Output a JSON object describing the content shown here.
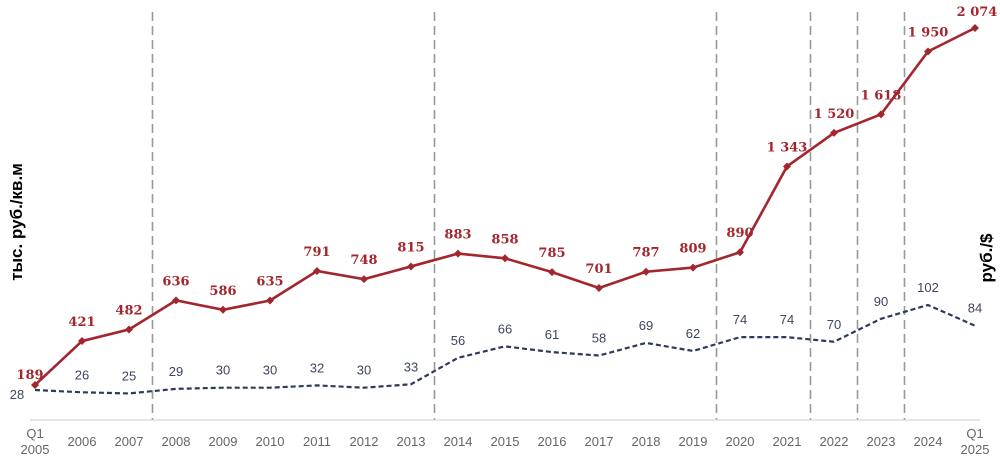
{
  "chart_data": {
    "type": "line",
    "ylabel_left": "тыс. руб./кв.м",
    "ylabel_right": "руб./$",
    "categories": [
      "Q1 2005",
      "2006",
      "2007",
      "2008",
      "2009",
      "2010",
      "2011",
      "2012",
      "2013",
      "2014",
      "2015",
      "2016",
      "2017",
      "2018",
      "2019",
      "2020",
      "2021",
      "2022",
      "2023",
      "2024",
      "Q1 2025"
    ],
    "tick_labels": [
      [
        "Q1",
        "2005"
      ],
      [
        "2006"
      ],
      [
        "2007"
      ],
      [
        "2008"
      ],
      [
        "2009"
      ],
      [
        "2010"
      ],
      [
        "2011"
      ],
      [
        "2012"
      ],
      [
        "2013"
      ],
      [
        "2014"
      ],
      [
        "2015"
      ],
      [
        "2016"
      ],
      [
        "2017"
      ],
      [
        "2018"
      ],
      [
        "2019"
      ],
      [
        "2020"
      ],
      [
        "2021"
      ],
      [
        "2022"
      ],
      [
        "2023"
      ],
      [
        "2024"
      ],
      [
        "Q1",
        "2025"
      ]
    ],
    "series": [
      {
        "axis": "left",
        "style": "solid",
        "color": "#a3262e",
        "values": [
          189,
          421,
          482,
          636,
          586,
          635,
          791,
          748,
          815,
          883,
          858,
          785,
          701,
          787,
          809,
          890,
          1343,
          1520,
          1618,
          1950,
          2074
        ],
        "labels": [
          "189",
          "421",
          "482",
          "636",
          "586",
          "635",
          "791",
          "748",
          "815",
          "883",
          "858",
          "785",
          "701",
          "787",
          "809",
          "890",
          "1 343",
          "1 520",
          "1 618",
          "1 950",
          "2 074"
        ]
      },
      {
        "axis": "right",
        "style": "dashed",
        "color": "#2e3a5c",
        "values": [
          28,
          26,
          25,
          29,
          30,
          30,
          32,
          30,
          33,
          56,
          66,
          61,
          58,
          69,
          62,
          74,
          74,
          70,
          90,
          102,
          84
        ],
        "labels": [
          "28",
          "26",
          "25",
          "29",
          "30",
          "30",
          "32",
          "30",
          "33",
          "56",
          "66",
          "61",
          "58",
          "69",
          "62",
          "74",
          "74",
          "70",
          "90",
          "102",
          "84"
        ]
      }
    ],
    "vertical_dividers_after": [
      "2007",
      "2013",
      "2019",
      "2021",
      "2022",
      "2023"
    ],
    "grid": false,
    "legend": "none"
  }
}
